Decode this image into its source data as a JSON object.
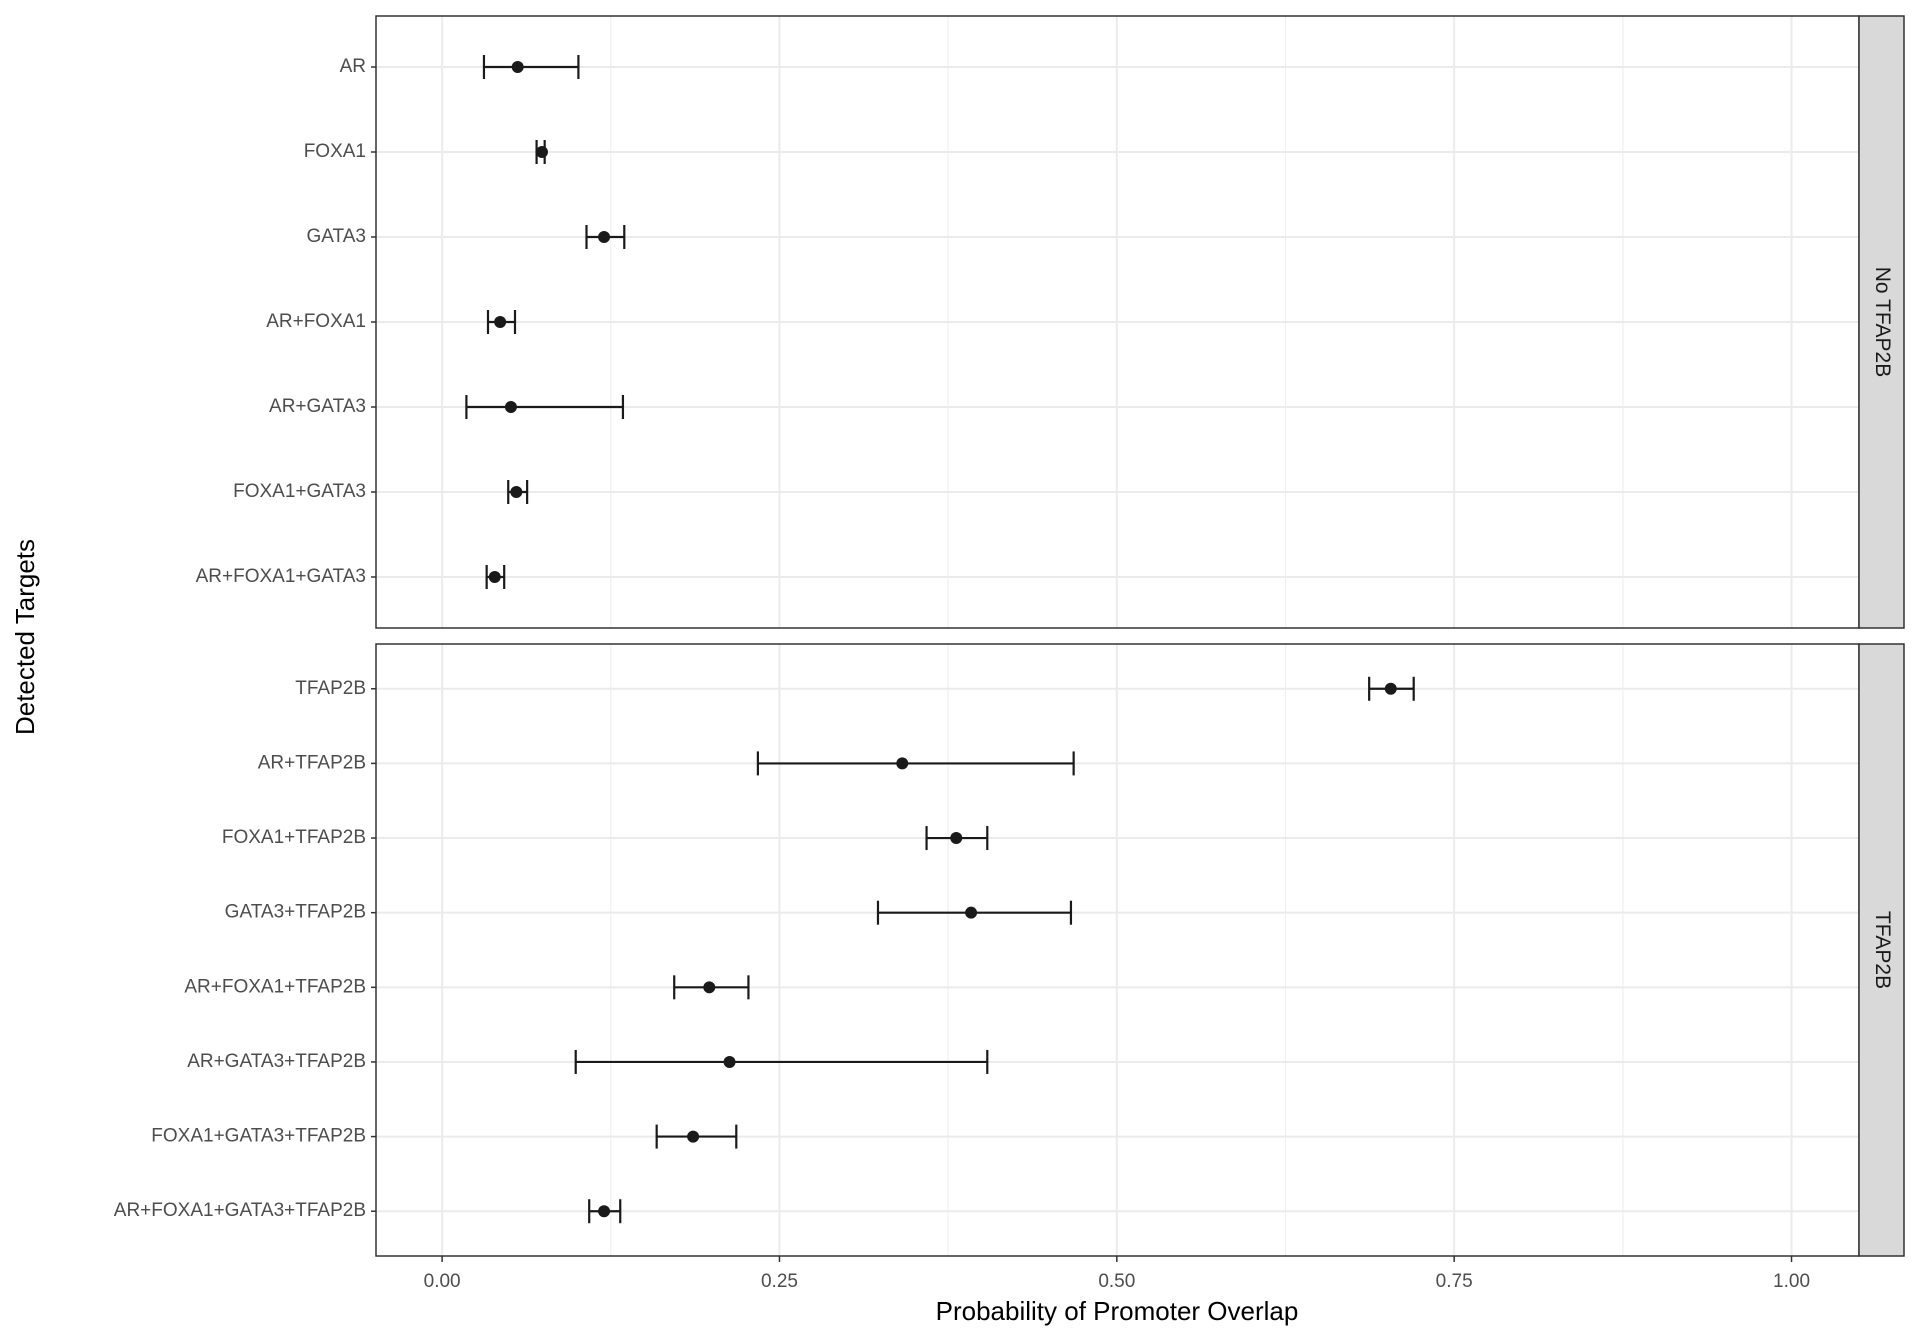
{
  "chart_data": {
    "type": "errorbar",
    "xlabel": "Probability of Promoter Overlap",
    "ylabel": "Detected Targets",
    "xlim": [
      -0.049,
      1.05
    ],
    "xticks": [
      {
        "value": 0,
        "label": "0.00"
      },
      {
        "value": 0.25,
        "label": "0.25"
      },
      {
        "value": 0.5,
        "label": "0.50"
      },
      {
        "value": 0.75,
        "label": "0.75"
      },
      {
        "value": 1,
        "label": "1.00"
      }
    ],
    "xminorticks": [
      0.125,
      0.375,
      0.625,
      0.875
    ],
    "grid": true,
    "color": "#1a1a1a",
    "panels": [
      {
        "strip": "No TFAP2B",
        "categories": [
          "AR",
          "FOXA1",
          "GATA3",
          "AR+FOXA1",
          "AR+GATA3",
          "FOXA1+GATA3",
          "AR+FOXA1+GATA3"
        ],
        "values": [
          0.056,
          0.074,
          0.12,
          0.043,
          0.051,
          0.055,
          0.039
        ],
        "lower": [
          0.031,
          0.07,
          0.107,
          0.034,
          0.018,
          0.049,
          0.033
        ],
        "upper": [
          0.101,
          0.076,
          0.135,
          0.054,
          0.134,
          0.063,
          0.046
        ]
      },
      {
        "strip": "TFAP2B",
        "categories": [
          "TFAP2B",
          "AR+TFAP2B",
          "FOXA1+TFAP2B",
          "GATA3+TFAP2B",
          "AR+FOXA1+TFAP2B",
          "AR+GATA3+TFAP2B",
          "FOXA1+GATA3+TFAP2B",
          "AR+FOXA1+GATA3+TFAP2B"
        ],
        "values": [
          0.703,
          0.341,
          0.381,
          0.392,
          0.198,
          0.213,
          0.186,
          0.12
        ],
        "lower": [
          0.687,
          0.234,
          0.359,
          0.323,
          0.172,
          0.099,
          0.159,
          0.109
        ],
        "upper": [
          0.72,
          0.468,
          0.404,
          0.466,
          0.227,
          0.404,
          0.218,
          0.132
        ]
      }
    ]
  }
}
